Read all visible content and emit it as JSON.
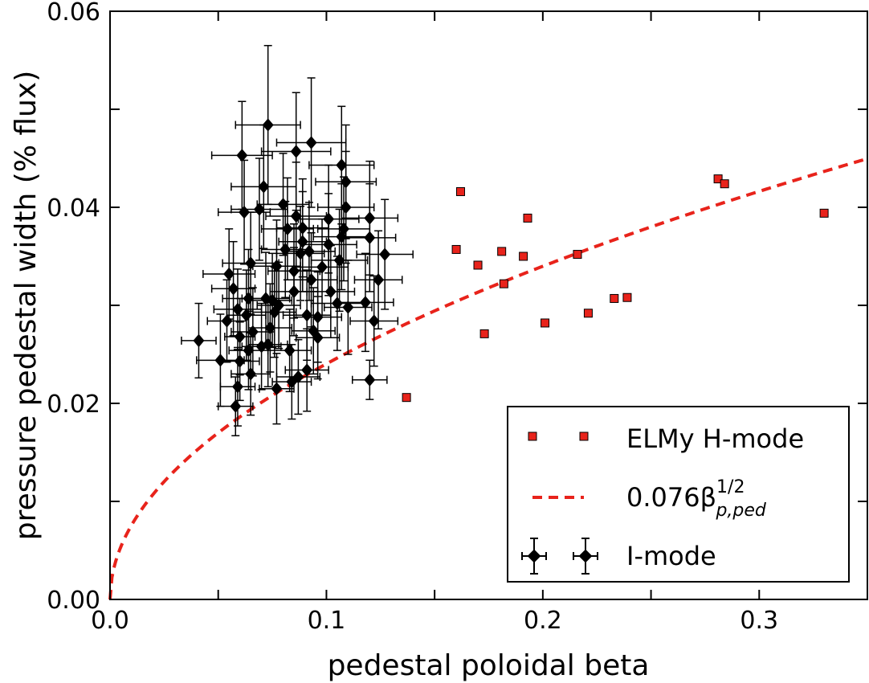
{
  "chart_data": {
    "type": "scatter",
    "xlabel": "pedestal poloidal beta",
    "ylabel": "pressure pedestal width (% flux)",
    "xlim": [
      0.0,
      0.35
    ],
    "ylim": [
      0.0,
      0.06
    ],
    "x_ticks": [
      "0.0",
      "0.1",
      "0.2",
      "0.3"
    ],
    "y_ticks": [
      "0.00",
      "0.02",
      "0.04",
      "0.06"
    ],
    "x_tick_values": [
      0.0,
      0.1,
      0.2,
      0.3
    ],
    "y_tick_values": [
      0.0,
      0.02,
      0.04,
      0.06
    ],
    "grid": false,
    "legend_position": "bottom-right",
    "legend": {
      "elmy_label": "ELMy H-mode",
      "fit_label": "0.076β",
      "fit_sup": "1/2",
      "fit_sub": "p,ped",
      "imode_label": "I-mode"
    },
    "colors": {
      "elmy": "#e8231b",
      "fit": "#e8231b",
      "imode": "#000000"
    },
    "series": [
      {
        "name": "ELMy H-mode",
        "marker": "square",
        "points": [
          [
            0.137,
            0.0206
          ],
          [
            0.16,
            0.0357
          ],
          [
            0.162,
            0.0416
          ],
          [
            0.17,
            0.0341
          ],
          [
            0.173,
            0.0271
          ],
          [
            0.181,
            0.0355
          ],
          [
            0.182,
            0.0322
          ],
          [
            0.191,
            0.035
          ],
          [
            0.193,
            0.0389
          ],
          [
            0.201,
            0.0282
          ],
          [
            0.216,
            0.0352
          ],
          [
            0.221,
            0.0292
          ],
          [
            0.233,
            0.0307
          ],
          [
            0.239,
            0.0308
          ],
          [
            0.281,
            0.0429
          ],
          [
            0.284,
            0.0424
          ],
          [
            0.33,
            0.0394
          ]
        ]
      },
      {
        "name": "0.076βp,ped^1/2",
        "type": "line",
        "style": "dashed",
        "coefficient": 0.076,
        "exponent": 0.5
      },
      {
        "name": "I-mode",
        "marker": "diamond",
        "points": [
          [
            0.041,
            0.0264,
            0.008,
            0.0038
          ],
          [
            0.051,
            0.0244,
            0.011,
            0.0047
          ],
          [
            0.054,
            0.0284,
            0.009,
            0.0042
          ],
          [
            0.055,
            0.0332,
            0.012,
            0.0046
          ],
          [
            0.057,
            0.0317,
            0.01,
            0.0048
          ],
          [
            0.058,
            0.0197,
            0.008,
            0.003
          ],
          [
            0.059,
            0.0217,
            0.008,
            0.004
          ],
          [
            0.059,
            0.0296,
            0.011,
            0.0041
          ],
          [
            0.06,
            0.0268,
            0.007,
            0.0039
          ],
          [
            0.06,
            0.0243,
            0.009,
            0.004
          ],
          [
            0.061,
            0.0453,
            0.014,
            0.0055
          ],
          [
            0.062,
            0.0395,
            0.012,
            0.0053
          ],
          [
            0.063,
            0.029,
            0.009,
            0.0046
          ],
          [
            0.064,
            0.0254,
            0.009,
            0.004
          ],
          [
            0.064,
            0.0307,
            0.012,
            0.005
          ],
          [
            0.065,
            0.023,
            0.009,
            0.0042
          ],
          [
            0.065,
            0.0343,
            0.013,
            0.0052
          ],
          [
            0.066,
            0.0273,
            0.01,
            0.0045
          ],
          [
            0.069,
            0.0398,
            0.013,
            0.0052
          ],
          [
            0.07,
            0.0258,
            0.009,
            0.0044
          ],
          [
            0.071,
            0.0421,
            0.015,
            0.0063
          ],
          [
            0.072,
            0.0307,
            0.011,
            0.0047
          ],
          [
            0.073,
            0.0484,
            0.015,
            0.0081
          ],
          [
            0.073,
            0.026,
            0.009,
            0.0043
          ],
          [
            0.074,
            0.0277,
            0.01,
            0.0045
          ],
          [
            0.075,
            0.0305,
            0.009,
            0.0048
          ],
          [
            0.076,
            0.0293,
            0.01,
            0.0046
          ],
          [
            0.077,
            0.0215,
            0.008,
            0.0036
          ],
          [
            0.077,
            0.034,
            0.011,
            0.0047
          ],
          [
            0.078,
            0.03,
            0.01,
            0.0044
          ],
          [
            0.08,
            0.0403,
            0.012,
            0.0052
          ],
          [
            0.081,
            0.0357,
            0.011,
            0.0049
          ],
          [
            0.082,
            0.0378,
            0.012,
            0.0052
          ],
          [
            0.083,
            0.0254,
            0.01,
            0.0042
          ],
          [
            0.084,
            0.0222,
            0.009,
            0.0038
          ],
          [
            0.085,
            0.0314,
            0.011,
            0.0045
          ],
          [
            0.085,
            0.0335,
            0.012,
            0.0048
          ],
          [
            0.086,
            0.0391,
            0.014,
            0.0055
          ],
          [
            0.086,
            0.0457,
            0.016,
            0.006
          ],
          [
            0.087,
            0.0227,
            0.01,
            0.0038
          ],
          [
            0.088,
            0.0353,
            0.011,
            0.0048
          ],
          [
            0.089,
            0.0379,
            0.012,
            0.005
          ],
          [
            0.089,
            0.0365,
            0.011,
            0.0051
          ],
          [
            0.091,
            0.029,
            0.011,
            0.0046
          ],
          [
            0.091,
            0.0234,
            0.01,
            0.0042
          ],
          [
            0.092,
            0.0355,
            0.012,
            0.005
          ],
          [
            0.093,
            0.0466,
            0.016,
            0.0066
          ],
          [
            0.093,
            0.0326,
            0.012,
            0.0048
          ],
          [
            0.094,
            0.0274,
            0.01,
            0.0044
          ],
          [
            0.096,
            0.0288,
            0.011,
            0.0046
          ],
          [
            0.096,
            0.0267,
            0.01,
            0.0042
          ],
          [
            0.098,
            0.0339,
            0.012,
            0.0049
          ],
          [
            0.101,
            0.0362,
            0.013,
            0.0052
          ],
          [
            0.101,
            0.0388,
            0.014,
            0.0055
          ],
          [
            0.102,
            0.0314,
            0.011,
            0.0047
          ],
          [
            0.105,
            0.0302,
            0.012,
            0.0048
          ],
          [
            0.106,
            0.0346,
            0.013,
            0.0052
          ],
          [
            0.107,
            0.037,
            0.013,
            0.0054
          ],
          [
            0.107,
            0.0443,
            0.015,
            0.006
          ],
          [
            0.108,
            0.0378,
            0.012,
            0.0053
          ],
          [
            0.109,
            0.04,
            0.013,
            0.0057
          ],
          [
            0.109,
            0.0426,
            0.014,
            0.0058
          ],
          [
            0.11,
            0.0298,
            0.011,
            0.0048
          ],
          [
            0.118,
            0.0303,
            0.013,
            0.005
          ],
          [
            0.12,
            0.0389,
            0.013,
            0.0058
          ],
          [
            0.12,
            0.0369,
            0.012,
            0.0055
          ],
          [
            0.12,
            0.0224,
            0.008,
            0.002
          ],
          [
            0.122,
            0.0284,
            0.011,
            0.0046
          ],
          [
            0.124,
            0.0326,
            0.011,
            0.005
          ],
          [
            0.127,
            0.0352,
            0.013,
            0.0056
          ]
        ]
      }
    ]
  }
}
